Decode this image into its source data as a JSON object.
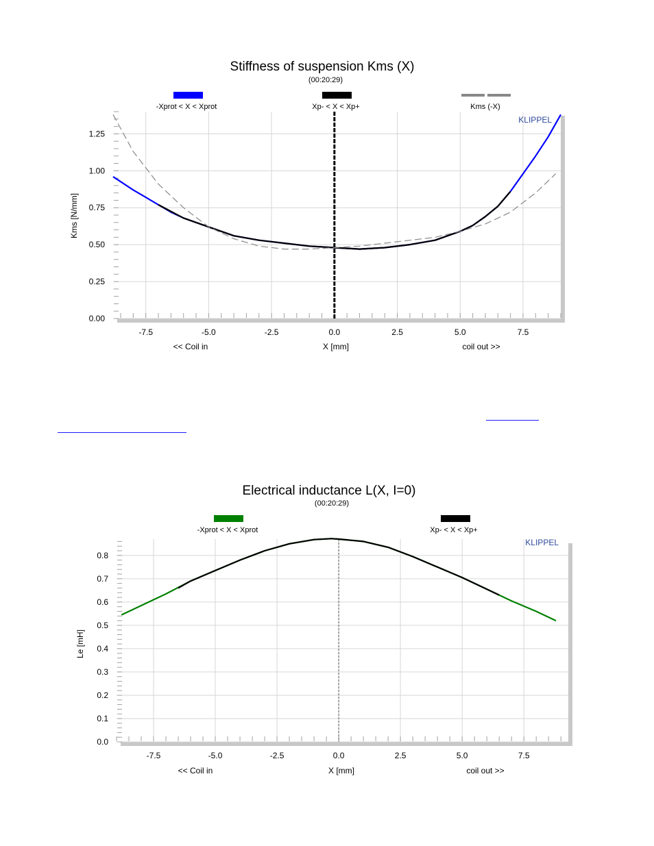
{
  "links": [
    "",
    ""
  ],
  "charts": [
    {
      "id": "kms",
      "title": "Stiffness of suspension Kms (X)",
      "subtitle": "(00:20:29)",
      "brand": "KLIPPEL",
      "ylabel": "Kms [N/mm]",
      "xlabel": "X [mm]",
      "xlabel_left": "<< Coil in",
      "xlabel_right": "coil out >>",
      "xticks": [
        "-7.5",
        "-5.0",
        "-2.5",
        "0.0",
        "2.5",
        "5.0",
        "7.5"
      ],
      "yticks": [
        "0.00",
        "0.25",
        "0.50",
        "0.75",
        "1.00",
        "1.25"
      ],
      "legend": [
        "-Xprot < X < Xprot",
        "Xp- < X < Xp+",
        "Kms (-X)"
      ],
      "colors": {
        "blue": "#0000ff",
        "black": "#000000",
        "gray": "#888888"
      }
    },
    {
      "id": "le",
      "title": "Electrical inductance L(X, I=0)",
      "subtitle": "(00:20:29)",
      "brand": "KLIPPEL",
      "ylabel": "Le [mH]",
      "xlabel": "X [mm]",
      "xlabel_left": "<< Coil in",
      "xlabel_right": "coil out >>",
      "xticks": [
        "-7.5",
        "-5.0",
        "-2.5",
        "0.0",
        "2.5",
        "5.0",
        "7.5"
      ],
      "yticks": [
        "0.0",
        "0.1",
        "0.2",
        "0.3",
        "0.4",
        "0.5",
        "0.6",
        "0.7",
        "0.8"
      ],
      "legend": [
        "-Xprot < X < Xprot",
        "Xp- < X < Xp+"
      ],
      "colors": {
        "green": "#008000",
        "black": "#000000"
      }
    }
  ],
  "chart_data": [
    {
      "type": "line",
      "title": "Stiffness of suspension Kms (X)",
      "xlabel": "X [mm]",
      "ylabel": "Kms [N/mm]",
      "xlim": [
        -8.8,
        9.0
      ],
      "ylim": [
        0,
        1.4
      ],
      "grid": true,
      "legend_position": "top",
      "series": [
        {
          "name": "-Xprot < X < Xprot",
          "color": "#0000ff",
          "x": [
            -8.8,
            -8,
            -7.5,
            -7,
            -6.5,
            -6,
            -5,
            -4,
            -3,
            -2,
            -1,
            0,
            1,
            2,
            3,
            4,
            5,
            5.5,
            6,
            6.5,
            7,
            7.5,
            8,
            8.5,
            9.0
          ],
          "y": [
            0.96,
            0.87,
            0.82,
            0.77,
            0.72,
            0.68,
            0.62,
            0.56,
            0.53,
            0.51,
            0.49,
            0.48,
            0.47,
            0.48,
            0.5,
            0.53,
            0.59,
            0.63,
            0.69,
            0.76,
            0.86,
            0.98,
            1.1,
            1.23,
            1.38
          ]
        },
        {
          "name": "Xp- < X < Xp+",
          "color": "#000000",
          "x": [
            -7,
            -6,
            -5,
            -4,
            -3,
            -2,
            -1,
            0,
            1,
            2,
            3,
            4,
            5,
            5.5,
            6,
            6.5,
            7
          ],
          "y": [
            0.77,
            0.68,
            0.62,
            0.56,
            0.53,
            0.51,
            0.49,
            0.48,
            0.47,
            0.48,
            0.5,
            0.53,
            0.59,
            0.63,
            0.69,
            0.76,
            0.86
          ]
        },
        {
          "name": "Kms (-X)",
          "color": "#888888",
          "x": [
            -8.8,
            -8,
            -7,
            -6,
            -5,
            -4,
            -3,
            -2,
            -1,
            0,
            1,
            2,
            3,
            4,
            5,
            6,
            7,
            8,
            8.8
          ],
          "y": [
            1.38,
            1.13,
            0.91,
            0.75,
            0.62,
            0.54,
            0.49,
            0.47,
            0.47,
            0.48,
            0.49,
            0.51,
            0.53,
            0.55,
            0.59,
            0.64,
            0.72,
            0.85,
            0.98
          ]
        }
      ],
      "annotations": [
        {
          "type": "vertical-line",
          "x": 0.0
        }
      ]
    },
    {
      "type": "line",
      "title": "Electrical inductance L(X, I=0)",
      "xlabel": "X [mm]",
      "ylabel": "Le [mH]",
      "xlim": [
        -9.0,
        9.3
      ],
      "ylim": [
        0,
        0.87
      ],
      "grid": true,
      "legend_position": "top",
      "series": [
        {
          "name": "-Xprot < X < Xprot",
          "color": "#008000",
          "x": [
            -8.8,
            -8,
            -7,
            -6,
            -5,
            -4,
            -3,
            -2,
            -1,
            -0.3,
            0,
            1,
            2,
            3,
            4,
            5,
            6,
            7,
            8,
            8.8
          ],
          "y": [
            0.545,
            0.585,
            0.635,
            0.69,
            0.735,
            0.78,
            0.82,
            0.85,
            0.868,
            0.872,
            0.87,
            0.86,
            0.835,
            0.795,
            0.75,
            0.705,
            0.655,
            0.605,
            0.56,
            0.52
          ]
        },
        {
          "name": "Xp- < X < Xp+",
          "color": "#000000",
          "x": [
            -6.5,
            -6,
            -5,
            -4,
            -3,
            -2,
            -1,
            -0.3,
            0,
            1,
            2,
            3,
            4,
            5,
            6,
            6.5
          ],
          "y": [
            0.66,
            0.69,
            0.735,
            0.78,
            0.82,
            0.85,
            0.868,
            0.872,
            0.87,
            0.86,
            0.835,
            0.795,
            0.75,
            0.705,
            0.655,
            0.63
          ]
        }
      ],
      "annotations": [
        {
          "type": "vertical-line",
          "x": 0.0
        }
      ]
    }
  ]
}
